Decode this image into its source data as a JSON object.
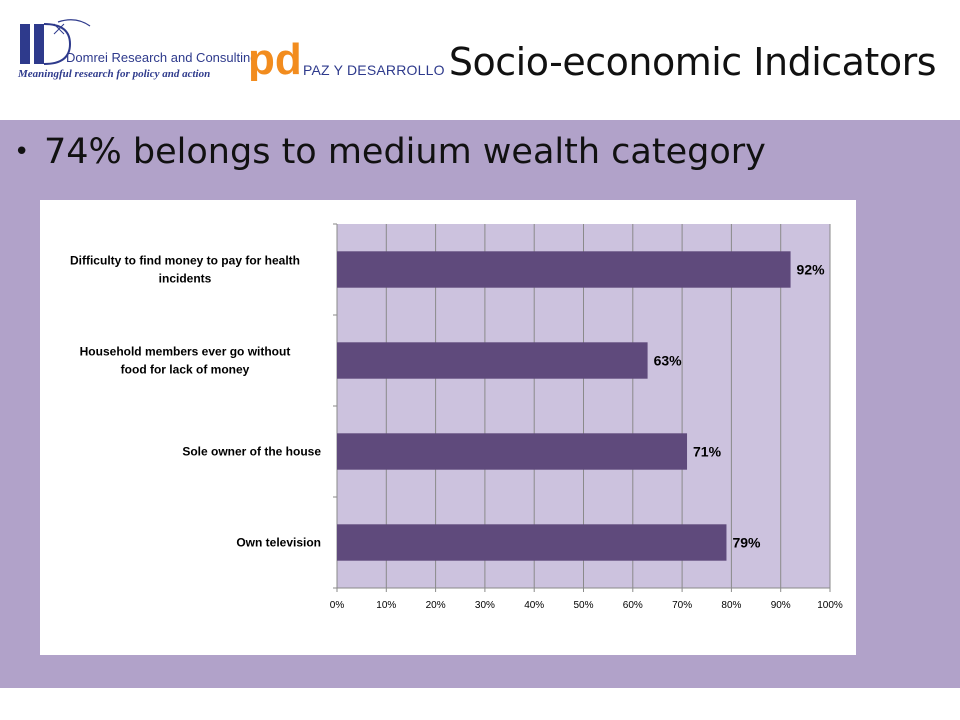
{
  "header": {
    "logo1": {
      "name": "Domrei Research and Consulting",
      "tagline": "Meaningful research for policy and action"
    },
    "logo2": {
      "mark": "pd",
      "name": "PAZ Y DESARROLLO"
    },
    "title": "Socio-economic Indicators"
  },
  "bullet": {
    "text": "74% belongs to medium wealth category"
  },
  "colors": {
    "slide_bg": "#b1a2c9",
    "plot_bg": "#ccc2de",
    "bar": "#5f4a7c",
    "logo_blue": "#2e3a8c",
    "logo_orange": "#f28c1e"
  },
  "chart_data": {
    "type": "bar",
    "orientation": "horizontal",
    "categories": [
      [
        "Difficulty to find money to pay for health",
        "incidents"
      ],
      [
        "Household members ever go without",
        "food for lack of money"
      ],
      [
        "Sole owner of the house"
      ],
      [
        "Own television"
      ]
    ],
    "values": [
      92,
      63,
      71,
      79
    ],
    "value_labels": [
      "92%",
      "63%",
      "71%",
      "79%"
    ],
    "xlim": [
      0,
      100
    ],
    "xticks": [
      "0%",
      "10%",
      "20%",
      "30%",
      "40%",
      "50%",
      "60%",
      "70%",
      "80%",
      "90%",
      "100%"
    ],
    "grid": true,
    "legend": "none"
  }
}
